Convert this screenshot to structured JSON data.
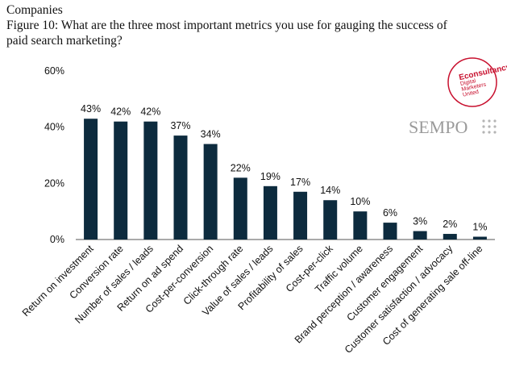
{
  "chart_data": {
    "type": "bar",
    "supertitle": "Companies",
    "title": "Figure 10: What are the three most important metrics you use for gauging the success of paid search marketing?",
    "categories": [
      "Return on investment",
      "Conversion rate",
      "Number of sales / leads",
      "Return on ad spend",
      "Cost-per-conversion",
      "Click-through rate",
      "Value of sales / leads",
      "Profitability of sales",
      "Cost-per-click",
      "Traffic volume",
      "Brand perception / awareness",
      "Customer engagement",
      "Customer satisfaction / advocacy",
      "Cost of generating sale off-line"
    ],
    "values": [
      43,
      42,
      42,
      37,
      34,
      22,
      19,
      17,
      14,
      10,
      6,
      3,
      2,
      1
    ],
    "value_labels": [
      "43%",
      "42%",
      "42%",
      "37%",
      "34%",
      "22%",
      "19%",
      "17%",
      "14%",
      "10%",
      "6%",
      "3%",
      "2%",
      "1%"
    ],
    "color": "#0d2b3e",
    "ylim": [
      0,
      60
    ],
    "yticks": [
      {
        "value": 0,
        "label": "0%"
      },
      {
        "value": 20,
        "label": "20%"
      },
      {
        "value": 40,
        "label": "40%"
      },
      {
        "value": 60,
        "label": "60%"
      }
    ],
    "grid": false,
    "logos": {
      "econsultancy": [
        "Econsultancy",
        "Digital",
        "Marketers",
        "United"
      ],
      "sempo": "SEMPO"
    }
  }
}
